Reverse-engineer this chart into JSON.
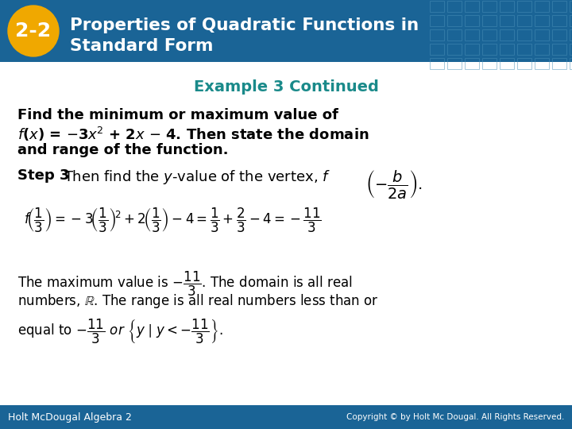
{
  "header_bg_color": "#1a6496",
  "header_text_color": "#ffffff",
  "header_title": "Properties of Quadratic Functions in\nStandard Form",
  "badge_color": "#f0a800",
  "badge_text": "2-2",
  "example_title": "Example 3 Continued",
  "example_title_color": "#1a8a8a",
  "body_bg": "#ffffff",
  "footer_bg": "#1a6496",
  "footer_left": "Holt McDougal Algebra 2",
  "footer_right": "Copyright © by Holt Mc Dougal. All Rights Reserved.",
  "footer_text_color": "#ffffff",
  "grid_color": "#4a90b8"
}
